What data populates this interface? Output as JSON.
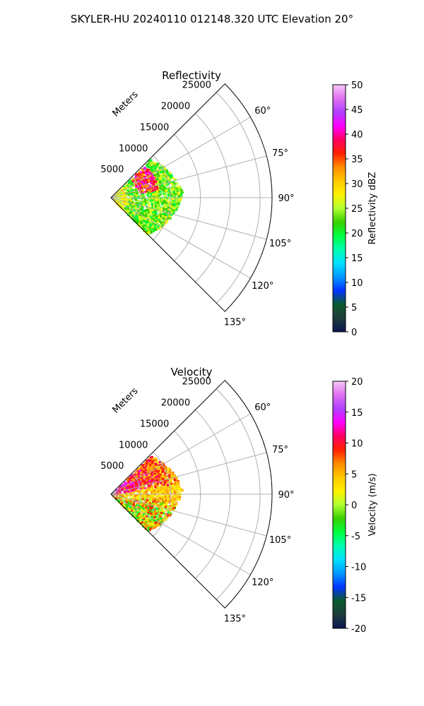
{
  "figure": {
    "title": "SKYLER-HU  20240110  012148.320 UTC Elevation 20°"
  },
  "chart_data": [
    {
      "type": "heatmap",
      "subtype": "polar-ppi",
      "title": "Reflectivity",
      "radial_label": "Meters",
      "radial_ticks": [
        "5000",
        "10000",
        "15000",
        "20000",
        "25000"
      ],
      "angle_ticks": [
        "60°",
        "75°",
        "90°",
        "105°",
        "120°",
        "135°"
      ],
      "grid": true,
      "colorbar": {
        "label": "Reflectivity dBZ",
        "range": [
          0,
          50
        ],
        "ticks": [
          "0",
          "5",
          "10",
          "15",
          "20",
          "25",
          "30",
          "35",
          "40",
          "45",
          "50"
        ],
        "placement": "right"
      },
      "field_summary": "Sector echoes 45°–135°, mostly 15–25 dBZ, with a 30–40 dBZ band near 5000–8000 m"
    },
    {
      "type": "heatmap",
      "subtype": "polar-ppi",
      "title": "Velocity",
      "radial_label": "Meters",
      "radial_ticks": [
        "5000",
        "10000",
        "15000",
        "20000",
        "25000"
      ],
      "angle_ticks": [
        "60°",
        "75°",
        "90°",
        "105°",
        "120°",
        "135°"
      ],
      "grid": true,
      "colorbar": {
        "label": "Velocity (m/s)",
        "range": [
          -20,
          20
        ],
        "ticks": [
          "-20",
          "-15",
          "-10",
          "-5",
          "0",
          "5",
          "10",
          "15",
          "20"
        ],
        "placement": "right"
      },
      "field_summary": "Positive velocities (red/magenta) toward 50°–80°, near-zero (yellow/green) around 90°, alternating bands toward 100°–130°"
    }
  ],
  "colors": {
    "colormap": [
      "#0b1650",
      "#1e3c3c",
      "#0a5a2a",
      "#0033ff",
      "#0099ff",
      "#00e0ff",
      "#00ffb0",
      "#00ff40",
      "#3ad000",
      "#b0ff30",
      "#fff200",
      "#ffc800",
      "#ff8c00",
      "#ff2000",
      "#ff0060",
      "#ff00ff",
      "#b040ff",
      "#e070f0",
      "#f6c8f6"
    ]
  }
}
